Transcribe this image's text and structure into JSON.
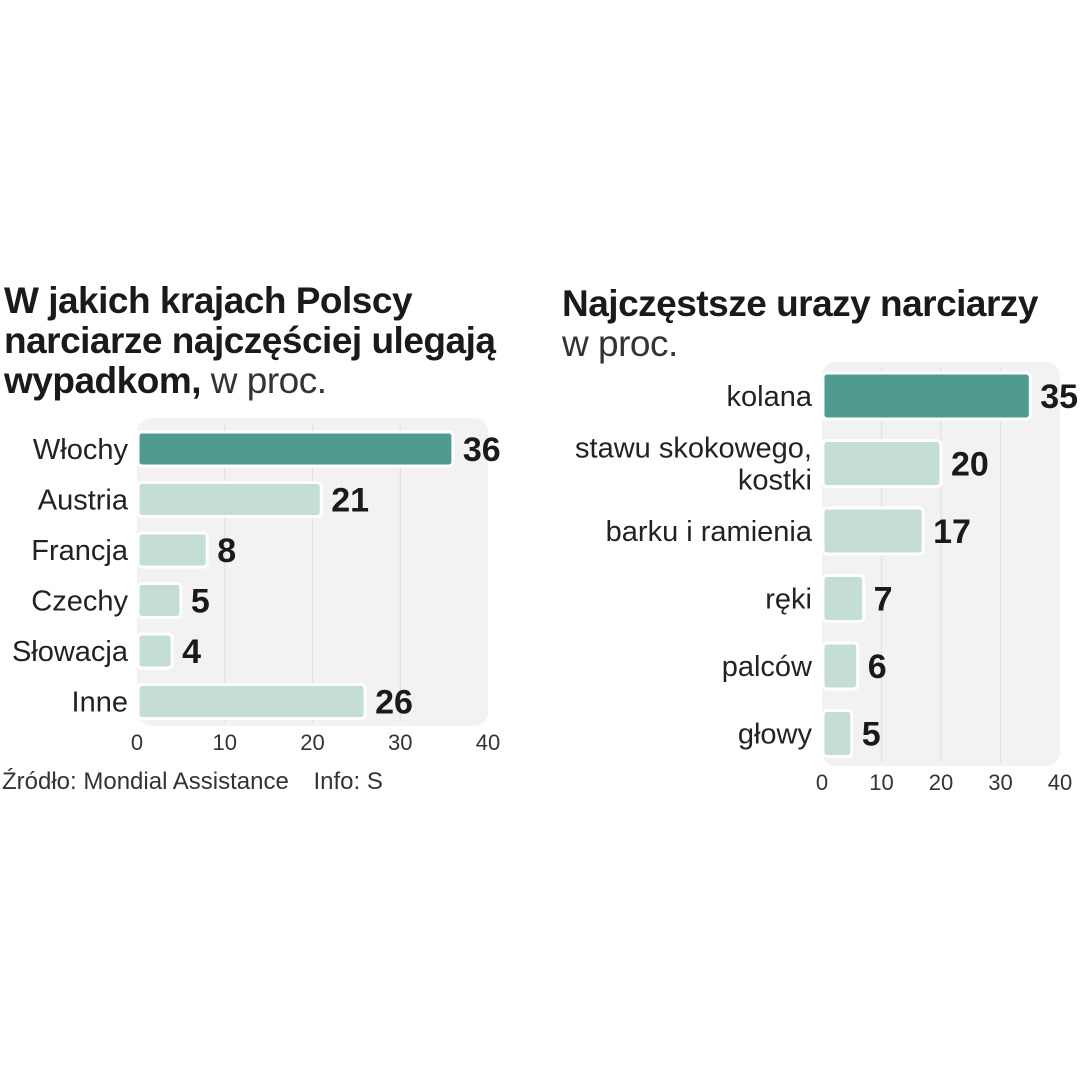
{
  "charts": {
    "left": {
      "title_bold": "W jakich krajach Polscy narciarze najczęściej ulegają wypadkom,",
      "title_unit": "w proc."
    },
    "right": {
      "title_bold": "Najczęstsze urazy narciarzy",
      "title_unit": "w proc."
    }
  },
  "footer": {
    "source": "Źródło: Mondial Assistance",
    "info": "Info: S"
  },
  "colors": {
    "highlight": "#4f9b8f",
    "bar": "#c4ddd6",
    "panel": "#f2f2f2",
    "grid": "#e2e2e2"
  },
  "chart_data": [
    {
      "type": "bar",
      "orientation": "horizontal",
      "title": "W jakich krajach Polscy narciarze najczęściej ulegają wypadkom, w proc.",
      "categories": [
        "Włochy",
        "Austria",
        "Francja",
        "Czechy",
        "Słowacja",
        "Inne"
      ],
      "values": [
        36,
        21,
        8,
        5,
        4,
        26
      ],
      "highlight_index": 0,
      "xlim": [
        0,
        40
      ],
      "xticks": [
        0,
        10,
        20,
        30,
        40
      ],
      "grid": true
    },
    {
      "type": "bar",
      "orientation": "horizontal",
      "title": "Najczęstsze urazy narciarzy w proc.",
      "categories": [
        [
          "kolana"
        ],
        [
          "stawu skokowego,",
          "kostki"
        ],
        [
          "barku i ramienia"
        ],
        [
          "ręki"
        ],
        [
          "palców"
        ],
        [
          "głowy"
        ]
      ],
      "values": [
        35,
        20,
        17,
        7,
        6,
        5
      ],
      "highlight_index": 0,
      "xlim": [
        0,
        40
      ],
      "xticks": [
        0,
        10,
        20,
        30,
        40
      ],
      "grid": true
    }
  ]
}
